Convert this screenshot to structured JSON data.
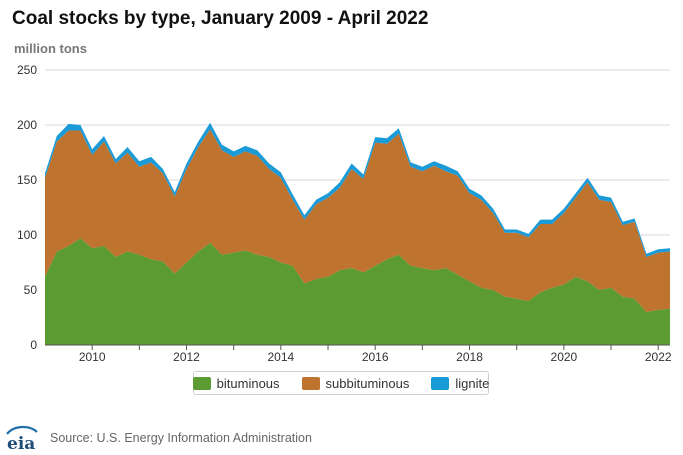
{
  "chart_data": {
    "type": "area",
    "stacked": true,
    "title": "Coal stocks by type, January 2009 - April 2022",
    "ylabel": "million tons",
    "xlabel": "",
    "x_range": [
      "2009-01",
      "2022-04"
    ],
    "ylim": [
      0,
      250
    ],
    "yticks": [
      0,
      50,
      100,
      150,
      200,
      250
    ],
    "xticks": [
      "2010",
      "2012",
      "2014",
      "2016",
      "2018",
      "2020",
      "2022"
    ],
    "grid": "horizontal",
    "legend_position": "bottom",
    "sampling": "quarterly (Jan, Apr, Jul, Oct) plus April 2022",
    "x": [
      "2009-01",
      "2009-04",
      "2009-07",
      "2009-10",
      "2010-01",
      "2010-04",
      "2010-07",
      "2010-10",
      "2011-01",
      "2011-04",
      "2011-07",
      "2011-10",
      "2012-01",
      "2012-04",
      "2012-07",
      "2012-10",
      "2013-01",
      "2013-04",
      "2013-07",
      "2013-10",
      "2014-01",
      "2014-04",
      "2014-07",
      "2014-10",
      "2015-01",
      "2015-04",
      "2015-07",
      "2015-10",
      "2016-01",
      "2016-04",
      "2016-07",
      "2016-10",
      "2017-01",
      "2017-04",
      "2017-07",
      "2017-10",
      "2018-01",
      "2018-04",
      "2018-07",
      "2018-10",
      "2019-01",
      "2019-04",
      "2019-07",
      "2019-10",
      "2020-01",
      "2020-04",
      "2020-07",
      "2020-10",
      "2021-01",
      "2021-04",
      "2021-07",
      "2021-10",
      "2022-01",
      "2022-04"
    ],
    "series": [
      {
        "name": "bituminous",
        "color": "#5c9a32",
        "values": [
          62,
          85,
          90,
          97,
          88,
          90,
          80,
          85,
          82,
          78,
          76,
          65,
          75,
          85,
          93,
          82,
          84,
          86,
          82,
          80,
          75,
          72,
          56,
          60,
          62,
          68,
          70,
          66,
          72,
          78,
          82,
          72,
          70,
          68,
          70,
          64,
          58,
          52,
          50,
          44,
          42,
          40,
          48,
          52,
          55,
          62,
          58,
          50,
          52,
          44,
          42,
          30,
          32,
          33
        ]
      },
      {
        "name": "subbituminous",
        "color": "#be732e",
        "values": [
          90,
          100,
          105,
          98,
          85,
          95,
          85,
          90,
          80,
          88,
          80,
          70,
          85,
          95,
          103,
          95,
          87,
          90,
          90,
          80,
          77,
          60,
          58,
          68,
          72,
          75,
          90,
          85,
          112,
          105,
          110,
          90,
          88,
          95,
          88,
          90,
          80,
          80,
          70,
          58,
          60,
          58,
          62,
          58,
          65,
          72,
          90,
          82,
          78,
          65,
          70,
          50,
          52,
          52
        ]
      },
      {
        "name": "lignite",
        "color": "#1a9ad6",
        "values": [
          4,
          5,
          6,
          5,
          5,
          5,
          4,
          5,
          5,
          5,
          4,
          4,
          5,
          5,
          6,
          5,
          5,
          5,
          5,
          5,
          5,
          5,
          4,
          4,
          4,
          5,
          5,
          4,
          5,
          5,
          5,
          4,
          4,
          4,
          5,
          4,
          4,
          4,
          4,
          3,
          3,
          3,
          4,
          4,
          4,
          4,
          4,
          4,
          4,
          3,
          3,
          3,
          3,
          3
        ]
      }
    ]
  },
  "header": {
    "title": "Coal stocks by type, January 2009 - April 2022",
    "units": "million tons"
  },
  "legend": {
    "items": [
      {
        "label": "bituminous",
        "color": "#5c9a32"
      },
      {
        "label": "subbituminous",
        "color": "#be732e"
      },
      {
        "label": "lignite",
        "color": "#1a9ad6"
      }
    ]
  },
  "footer": {
    "logo_text": "eia",
    "source": "Source: U.S. Energy Information Administration"
  }
}
